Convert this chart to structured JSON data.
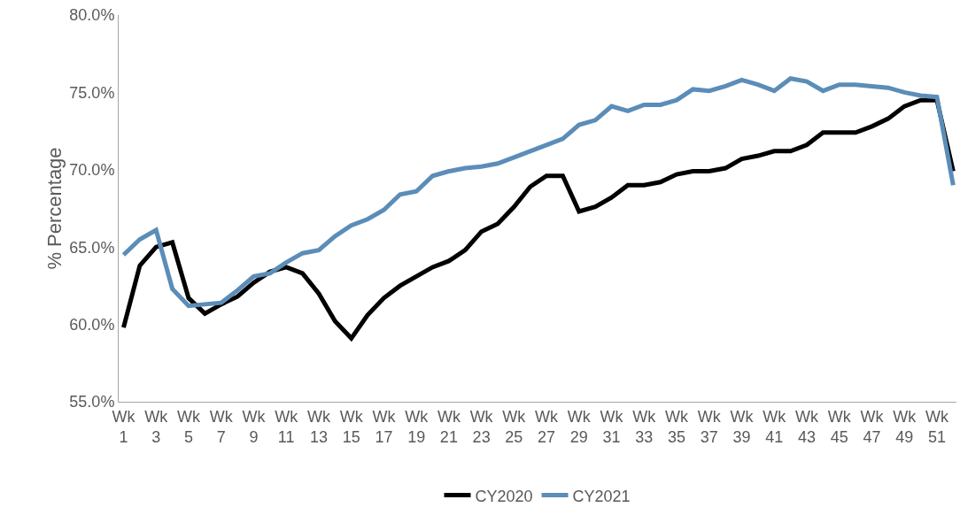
{
  "chart_data": {
    "type": "line",
    "ylabel": "% Percentage",
    "categories": [
      "Wk 1",
      null,
      "Wk 3",
      null,
      "Wk 5",
      null,
      "Wk 7",
      null,
      "Wk 9",
      null,
      "Wk 11",
      null,
      "Wk 13",
      null,
      "Wk 15",
      null,
      "Wk 17",
      null,
      "Wk 19",
      null,
      "Wk 21",
      null,
      "Wk 23",
      null,
      "Wk 25",
      null,
      "Wk 27",
      null,
      "Wk 29",
      null,
      "Wk 31",
      null,
      "Wk 33",
      null,
      "Wk 35",
      null,
      "Wk 37",
      null,
      "Wk 39",
      null,
      "Wk 41",
      null,
      "Wk 43",
      null,
      "Wk 45",
      null,
      "Wk 47",
      null,
      "Wk 49",
      null,
      "Wk 51",
      null
    ],
    "series": [
      {
        "name": "CY2020",
        "color": "#000000",
        "values": [
          59.8,
          63.8,
          65.0,
          65.3,
          61.7,
          60.7,
          61.3,
          61.8,
          62.7,
          63.4,
          63.7,
          63.3,
          62.0,
          60.2,
          59.1,
          60.6,
          61.7,
          62.5,
          63.1,
          63.7,
          64.1,
          64.8,
          66.0,
          66.5,
          67.6,
          68.9,
          69.6,
          69.6,
          67.3,
          67.6,
          68.2,
          69.0,
          69.0,
          69.2,
          69.7,
          69.9,
          69.9,
          70.1,
          70.7,
          70.9,
          71.2,
          71.2,
          71.6,
          72.4,
          72.4,
          72.4,
          72.8,
          73.3,
          74.1,
          74.5,
          74.5,
          69.9
        ]
      },
      {
        "name": "CY2021",
        "color": "#5b8db8",
        "values": [
          64.5,
          65.5,
          66.1,
          62.3,
          61.2,
          61.3,
          61.4,
          62.2,
          63.1,
          63.3,
          64.0,
          64.6,
          64.8,
          65.7,
          66.4,
          66.8,
          67.4,
          68.4,
          68.6,
          69.6,
          69.9,
          70.1,
          70.2,
          70.4,
          70.8,
          71.2,
          71.6,
          72.0,
          72.9,
          73.2,
          74.1,
          73.8,
          74.2,
          74.2,
          74.5,
          75.2,
          75.1,
          75.4,
          75.8,
          75.5,
          75.1,
          75.9,
          75.7,
          75.1,
          75.5,
          75.5,
          75.4,
          75.3,
          75.0,
          74.8,
          74.7,
          69.0
        ]
      }
    ],
    "ylim": [
      55,
      80
    ],
    "yticks": [
      {
        "value": 55,
        "label": "55.0%"
      },
      {
        "value": 60,
        "label": "60.0%"
      },
      {
        "value": 65,
        "label": "65.0%"
      },
      {
        "value": 70,
        "label": "70.0%"
      },
      {
        "value": 75,
        "label": "75.0%"
      },
      {
        "value": 80,
        "label": "80.0%"
      }
    ],
    "legend": "bottom",
    "marker": "none",
    "line_style": "solid"
  }
}
